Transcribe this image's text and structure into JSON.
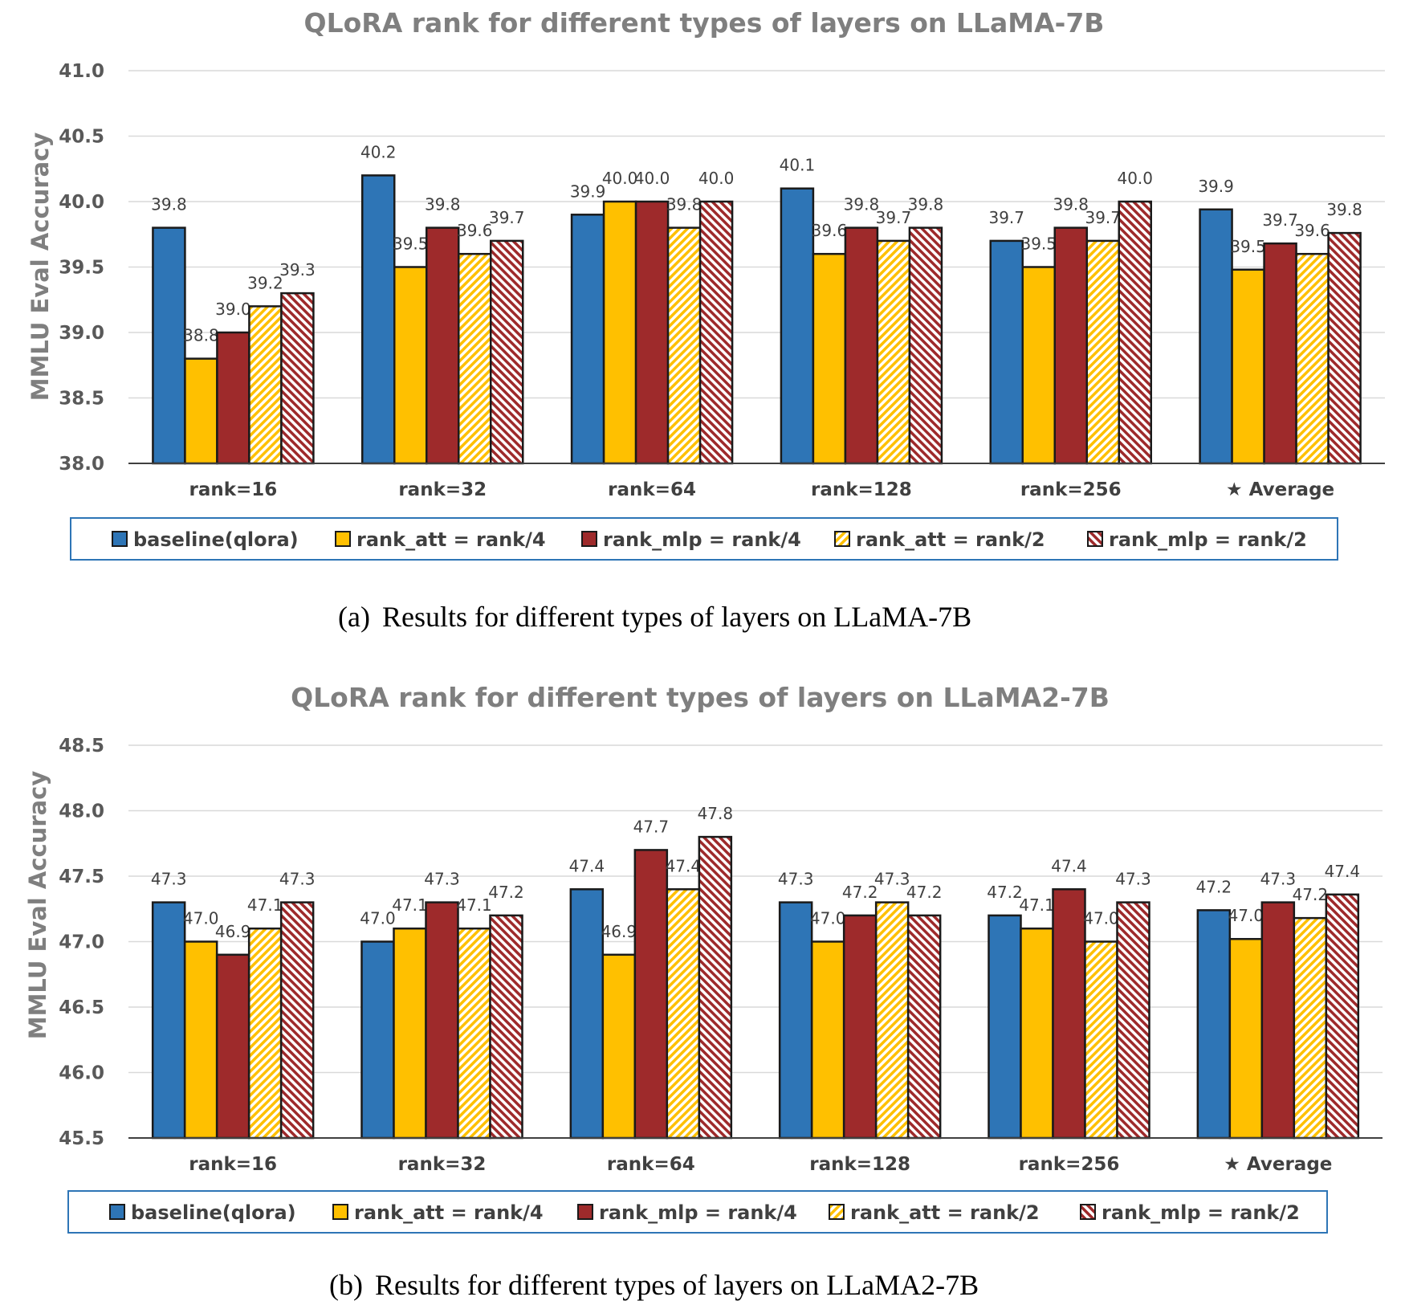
{
  "legend_entries": [
    "baseline(qlora)",
    "rank_att = rank/4",
    "rank_mlp = rank/4",
    "rank_att = rank/2",
    "rank_mlp = rank/2"
  ],
  "series_styles": [
    {
      "fill": "#2e75b6",
      "pattern": "solid"
    },
    {
      "fill": "#ffc000",
      "pattern": "solid"
    },
    {
      "fill": "#9e2a2b",
      "pattern": "solid"
    },
    {
      "fill": "#ffc000",
      "pattern": "diagonal-stripe"
    },
    {
      "fill": "#9e2a2b",
      "pattern": "diagonal-stripe"
    }
  ],
  "chart_data": [
    {
      "type": "bar",
      "title": "QLoRA rank for different types of layers on LLaMA-7B",
      "ylabel": "MMLU Eval Accuracy",
      "xlabel": "",
      "ylim": [
        38.0,
        41.0
      ],
      "yticks": [
        "38.0",
        "38.5",
        "39.0",
        "39.5",
        "40.0",
        "40.5",
        "41.0"
      ],
      "categories": [
        "rank=16",
        "rank=32",
        "rank=64",
        "rank=128",
        "rank=256",
        "★ Average"
      ],
      "series": [
        {
          "name": "baseline(qlora)",
          "values": [
            39.8,
            40.2,
            39.9,
            40.1,
            39.7,
            39.94
          ],
          "labels": [
            "39.8",
            "40.2",
            "39.9",
            "40.1",
            "39.7",
            "39.9"
          ]
        },
        {
          "name": "rank_att = rank/4",
          "values": [
            38.8,
            39.5,
            40.0,
            39.6,
            39.5,
            39.48
          ],
          "labels": [
            "38.8",
            "39.5",
            "40.0",
            "39.6",
            "39.5",
            "39.5"
          ]
        },
        {
          "name": "rank_mlp = rank/4",
          "values": [
            39.0,
            39.8,
            40.0,
            39.8,
            39.8,
            39.68
          ],
          "labels": [
            "39.0",
            "39.8",
            "40.0",
            "39.8",
            "39.8",
            "39.7"
          ]
        },
        {
          "name": "rank_att = rank/2",
          "values": [
            39.2,
            39.6,
            39.8,
            39.7,
            39.7,
            39.6
          ],
          "labels": [
            "39.2",
            "39.6",
            "39.8",
            "39.7",
            "39.7",
            "39.6"
          ]
        },
        {
          "name": "rank_mlp = rank/2",
          "values": [
            39.3,
            39.7,
            40.0,
            39.8,
            40.0,
            39.76
          ],
          "labels": [
            "39.3",
            "39.7",
            "40.0",
            "39.8",
            "40.0",
            "39.8"
          ]
        }
      ],
      "caption": {
        "tag": "(a)",
        "text": "Results for different types of layers on LLaMA-7B"
      }
    },
    {
      "type": "bar",
      "title": "QLoRA rank for different types of layers on LLaMA2-7B",
      "ylabel": "MMLU Eval Accuracy",
      "xlabel": "",
      "ylim": [
        45.5,
        48.5
      ],
      "yticks": [
        "45.5",
        "46.0",
        "46.5",
        "47.0",
        "47.5",
        "48.0",
        "48.5"
      ],
      "categories": [
        "rank=16",
        "rank=32",
        "rank=64",
        "rank=128",
        "rank=256",
        "★ Average"
      ],
      "series": [
        {
          "name": "baseline(qlora)",
          "values": [
            47.3,
            47.0,
            47.4,
            47.3,
            47.2,
            47.24
          ],
          "labels": [
            "47.3",
            "47.0",
            "47.4",
            "47.3",
            "47.2",
            "47.2"
          ]
        },
        {
          "name": "rank_att = rank/4",
          "values": [
            47.0,
            47.1,
            46.9,
            47.0,
            47.1,
            47.02
          ],
          "labels": [
            "47.0",
            "47.1",
            "46.9",
            "47.0",
            "47.1",
            "47.0"
          ]
        },
        {
          "name": "rank_mlp = rank/4",
          "values": [
            46.9,
            47.3,
            47.7,
            47.2,
            47.4,
            47.3
          ],
          "labels": [
            "46.9",
            "47.3",
            "47.7",
            "47.2",
            "47.4",
            "47.3"
          ]
        },
        {
          "name": "rank_att = rank/2",
          "values": [
            47.1,
            47.1,
            47.4,
            47.3,
            47.0,
            47.18
          ],
          "labels": [
            "47.1",
            "47.1",
            "47.4",
            "47.3",
            "47.0",
            "47.2"
          ]
        },
        {
          "name": "rank_mlp = rank/2",
          "values": [
            47.3,
            47.2,
            47.8,
            47.2,
            47.3,
            47.36
          ],
          "labels": [
            "47.3",
            "47.2",
            "47.8",
            "47.2",
            "47.3",
            "47.4"
          ]
        }
      ],
      "caption": {
        "tag": "(b)",
        "text": "Results for different types of layers on LLaMA2-7B"
      }
    }
  ]
}
